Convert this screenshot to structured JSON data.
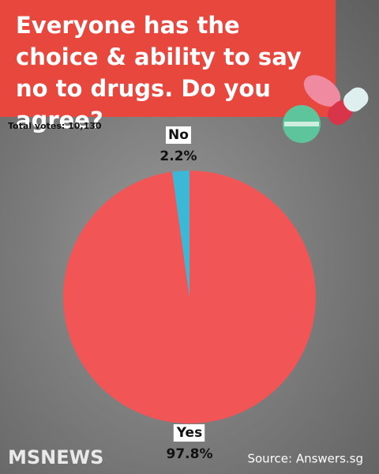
{
  "chart_data": {
    "type": "pie",
    "title": "Everyone has the choice & ability to say no to drugs. Do you agree?",
    "subtitle": "Total votes: 10,130",
    "categories": [
      "Yes",
      "No"
    ],
    "values": [
      97.8,
      2.2
    ],
    "value_labels": [
      "97.8%",
      "2.2%"
    ],
    "colors": [
      "#f25555",
      "#3db7d6"
    ],
    "source": "Source: Answers.sg",
    "logo": "MSNEWS"
  }
}
